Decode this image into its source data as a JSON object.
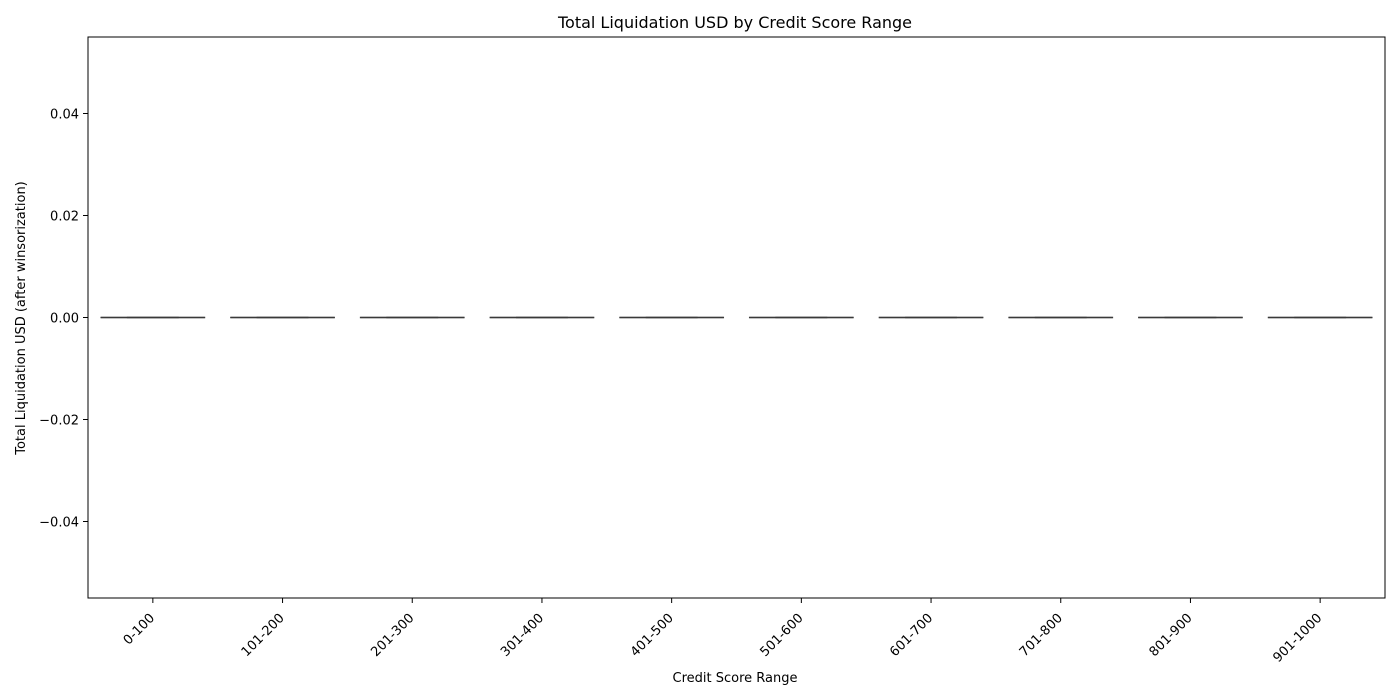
{
  "chart_data": {
    "type": "box",
    "title": "Total Liquidation USD by Credit Score Range",
    "xlabel": "Credit Score Range",
    "ylabel": "Total Liquidation USD (after winsorization)",
    "categories": [
      "0-100",
      "101-200",
      "201-300",
      "301-400",
      "401-500",
      "501-600",
      "601-700",
      "701-800",
      "801-900",
      "901-1000"
    ],
    "boxes": [
      {
        "category": "0-100",
        "min": 0,
        "q1": 0,
        "median": 0,
        "q3": 0,
        "max": 0
      },
      {
        "category": "101-200",
        "min": 0,
        "q1": 0,
        "median": 0,
        "q3": 0,
        "max": 0
      },
      {
        "category": "201-300",
        "min": 0,
        "q1": 0,
        "median": 0,
        "q3": 0,
        "max": 0
      },
      {
        "category": "301-400",
        "min": 0,
        "q1": 0,
        "median": 0,
        "q3": 0,
        "max": 0
      },
      {
        "category": "401-500",
        "min": 0,
        "q1": 0,
        "median": 0,
        "q3": 0,
        "max": 0
      },
      {
        "category": "501-600",
        "min": 0,
        "q1": 0,
        "median": 0,
        "q3": 0,
        "max": 0
      },
      {
        "category": "601-700",
        "min": 0,
        "q1": 0,
        "median": 0,
        "q3": 0,
        "max": 0
      },
      {
        "category": "701-800",
        "min": 0,
        "q1": 0,
        "median": 0,
        "q3": 0,
        "max": 0
      },
      {
        "category": "801-900",
        "min": 0,
        "q1": 0,
        "median": 0,
        "q3": 0,
        "max": 0
      },
      {
        "category": "901-1000",
        "min": 0,
        "q1": 0,
        "median": 0,
        "q3": 0,
        "max": 0
      }
    ],
    "yticks": [
      -0.04,
      -0.02,
      0.0,
      0.02,
      0.04
    ],
    "ytick_labels": [
      "−0.04",
      "−0.02",
      "0.00",
      "0.02",
      "0.04"
    ],
    "ylim": [
      -0.055,
      0.055
    ],
    "x_tick_rotation": 45,
    "grid": false,
    "box_color": "#3a3a3a"
  }
}
